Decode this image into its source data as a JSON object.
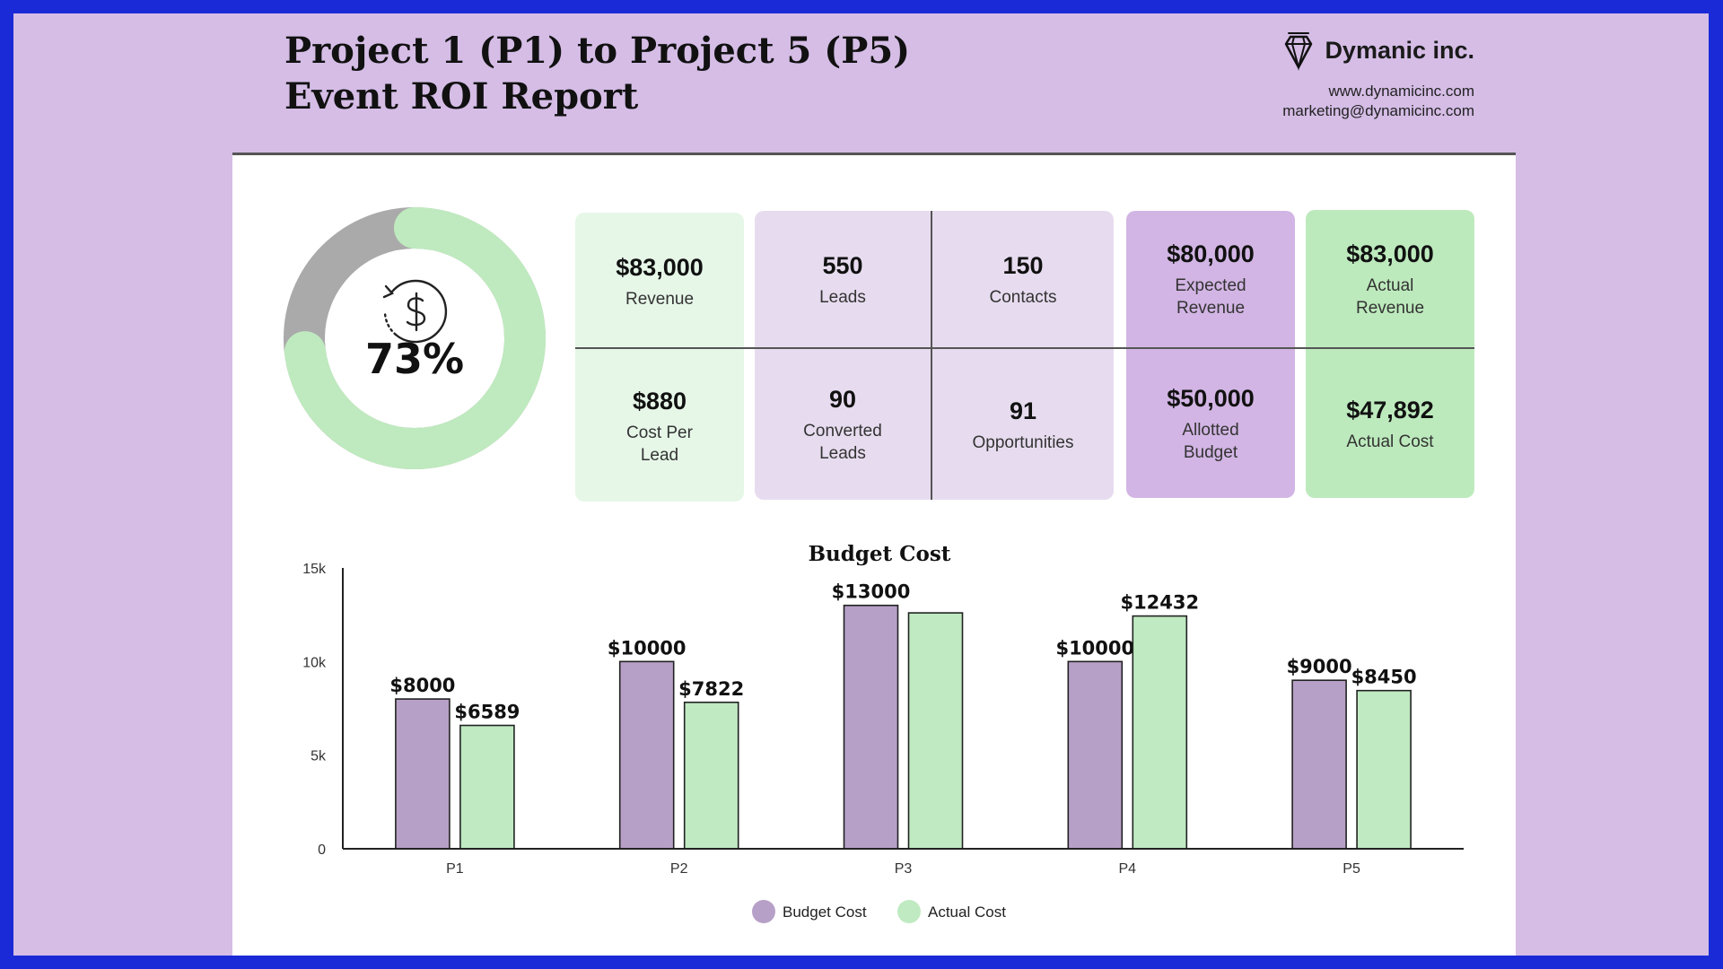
{
  "header": {
    "title_line1": "Project 1 (P1) to Project 5 (P5)",
    "title_line2": "Event ROI Report",
    "brand_name": "Dymanic inc.",
    "website": "www.dynamicinc.com",
    "email": "marketing@dynamicinc.com",
    "logo_icon": "crystal-gem-icon"
  },
  "roi": {
    "percent_label": "73%",
    "percent_value": 73,
    "icon": "refresh-dollar-icon",
    "fill_color": "#bfeabf",
    "track_color": "#aaaaaa"
  },
  "metrics": {
    "revenue": {
      "value": "$83,000",
      "label": "Revenue"
    },
    "cost_per_lead": {
      "value": "$880",
      "label": "Cost Per Lead"
    },
    "leads": {
      "value": "550",
      "label": "Leads"
    },
    "contacts": {
      "value": "150",
      "label": "Contacts"
    },
    "converted_leads": {
      "value": "90",
      "label": "Converted Leads"
    },
    "opportunities": {
      "value": "91",
      "label": "Opportunities"
    },
    "expected_revenue": {
      "value": "$80,000",
      "label": "Expected Revenue"
    },
    "allotted_budget": {
      "value": "$50,000",
      "label": "Allotted Budget"
    },
    "actual_revenue": {
      "value": "$83,000",
      "label": "Actual Revenue"
    },
    "actual_cost": {
      "value": "$47,892",
      "label": "Actual Cost"
    }
  },
  "colors": {
    "budget": "#b7a0c7",
    "actual": "#c0eac2"
  },
  "chart_data": {
    "type": "bar",
    "title": "Budget Cost",
    "categories": [
      "P1",
      "P2",
      "P3",
      "P4",
      "P5"
    ],
    "series": [
      {
        "name": "Budget Cost",
        "values": [
          8000,
          10000,
          13000,
          10000,
          9000
        ],
        "labels": [
          "$8000",
          "$10000",
          "$13000",
          "$10000",
          "$9000"
        ]
      },
      {
        "name": "Actual Cost",
        "values": [
          6589,
          7822,
          12600,
          12432,
          8450
        ],
        "labels": [
          "$6589",
          "$7822",
          "",
          "$12432",
          "$8450"
        ]
      }
    ],
    "ylim": [
      0,
      15000
    ],
    "yticks": [
      0,
      5000,
      10000,
      15000
    ],
    "ytick_labels": [
      "0",
      "5k",
      "10k",
      "15k"
    ],
    "xlabel": "",
    "ylabel": "",
    "grid": false,
    "legend_position": "bottom-center"
  }
}
